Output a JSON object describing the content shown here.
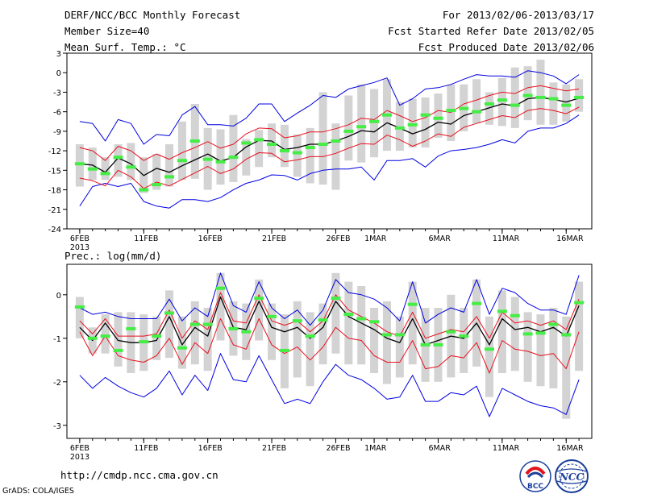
{
  "header": {
    "title": "DERF/NCC/BCC Monthly Forecast",
    "member_size": "Member Size=40",
    "variable": "Mean Surf. Temp.: °C",
    "period": "For 2013/02/06-2013/03/17",
    "fcst_started": "Fcst Started Refer Date 2013/02/05",
    "fcst_produced": "Fcst Produced Date 2013/02/06"
  },
  "footer": {
    "url": "http://cmdp.ncc.cma.gov.cn",
    "grads": "GrADS: COLA/IGES",
    "logo_bcc": "BCC",
    "logo_ncc": "NCC"
  },
  "colors": {
    "mean": "#000000",
    "spread": "#e8101e",
    "extreme": "#0000e0",
    "range_box": "#d3d3d3",
    "observed": "#44ee44"
  },
  "chart_data": [
    {
      "type": "line",
      "title": "Mean Surf. Temp.: °C",
      "x_tick_labels": [
        "6FEB",
        "11FEB",
        "16FEB",
        "21FEB",
        "26FEB",
        "1MAR",
        "6MAR",
        "11MAR",
        "16MAR"
      ],
      "x_tick_days": [
        1,
        6,
        11,
        16,
        21,
        24,
        29,
        34,
        39
      ],
      "x_year_label": "2013",
      "y_ticks": [
        3,
        0,
        -3,
        -6,
        -9,
        -12,
        -15,
        -18,
        -21,
        -24
      ],
      "y_tick_labels": [
        "3",
        "0",
        "-3",
        "-6",
        "-9",
        "-12",
        "-15",
        "-18",
        "-21",
        "-24"
      ],
      "ylim": [
        -24,
        3
      ],
      "x_days": [
        1,
        2,
        3,
        4,
        5,
        6,
        7,
        8,
        9,
        10,
        11,
        12,
        13,
        14,
        15,
        16,
        17,
        18,
        19,
        20,
        21,
        22,
        23,
        24,
        25,
        26,
        27,
        28,
        29,
        30,
        31,
        32,
        33,
        34,
        35,
        36,
        37,
        38,
        39,
        40
      ],
      "series": [
        {
          "name": "ensemble_mean",
          "values": [
            -14.0,
            -14.2,
            -15.3,
            -13.1,
            -14.0,
            -15.8,
            -14.7,
            -15.3,
            -14.3,
            -13.4,
            -12.5,
            -13.6,
            -13.0,
            -11.4,
            -10.4,
            -10.5,
            -11.8,
            -11.5,
            -11.0,
            -11.0,
            -10.5,
            -9.8,
            -8.9,
            -9.1,
            -7.7,
            -8.5,
            -9.4,
            -8.7,
            -7.6,
            -7.9,
            -6.6,
            -6.0,
            -5.4,
            -4.8,
            -5.1,
            -4.0,
            -3.8,
            -4.1,
            -4.5,
            -3.9
          ]
        },
        {
          "name": "mean_plus_sd",
          "values": [
            -11.5,
            -12.0,
            -13.5,
            -11.3,
            -12.0,
            -13.5,
            -12.5,
            -13.3,
            -12.3,
            -11.5,
            -10.6,
            -11.6,
            -11.0,
            -9.4,
            -8.5,
            -8.6,
            -10.0,
            -9.7,
            -9.1,
            -9.1,
            -8.6,
            -8.0,
            -7.0,
            -7.2,
            -5.8,
            -6.6,
            -7.5,
            -6.9,
            -5.8,
            -6.1,
            -4.8,
            -4.2,
            -3.5,
            -3.0,
            -3.2,
            -2.3,
            -2.0,
            -2.4,
            -2.8,
            -2.5
          ]
        },
        {
          "name": "mean_minus_sd",
          "values": [
            -16.2,
            -16.6,
            -17.4,
            -15.0,
            -16.0,
            -17.8,
            -16.8,
            -17.4,
            -16.4,
            -15.4,
            -14.4,
            -15.5,
            -14.8,
            -13.3,
            -12.3,
            -12.4,
            -13.7,
            -13.4,
            -12.9,
            -12.9,
            -12.4,
            -11.6,
            -10.9,
            -11.0,
            -9.6,
            -10.3,
            -11.3,
            -10.5,
            -9.4,
            -9.8,
            -8.4,
            -7.8,
            -7.2,
            -6.6,
            -6.9,
            -5.8,
            -5.5,
            -5.8,
            -6.3,
            -5.3
          ]
        },
        {
          "name": "ensemble_max",
          "values": [
            -7.5,
            -7.8,
            -10.5,
            -7.2,
            -7.8,
            -11.0,
            -9.5,
            -9.7,
            -6.5,
            -5.2,
            -8.0,
            -8.0,
            -8.2,
            -7.0,
            -4.8,
            -4.8,
            -7.5,
            -6.2,
            -5.0,
            -3.5,
            -3.8,
            -2.5,
            -2.0,
            -1.5,
            -0.8,
            -5.0,
            -4.0,
            -2.5,
            -2.3,
            -1.8,
            -1.0,
            -0.3,
            -0.5,
            -0.5,
            -0.7,
            0.3,
            0.0,
            -0.5,
            -1.7,
            -0.3
          ]
        },
        {
          "name": "ensemble_min",
          "values": [
            -20.5,
            -17.5,
            -17.0,
            -17.5,
            -17.0,
            -19.8,
            -20.5,
            -20.8,
            -19.5,
            -19.5,
            -19.8,
            -19.2,
            -18.0,
            -17.0,
            -16.5,
            -15.7,
            -15.8,
            -16.5,
            -15.5,
            -15.0,
            -14.8,
            -14.8,
            -14.5,
            -16.5,
            -13.5,
            -13.5,
            -13.2,
            -14.5,
            -12.8,
            -12.0,
            -11.8,
            -11.5,
            -11.0,
            -10.3,
            -10.8,
            -9.0,
            -8.5,
            -8.5,
            -7.8,
            -6.5
          ]
        },
        {
          "name": "member_range_high",
          "values": [
            -11.0,
            -11.5,
            -13.0,
            -11.0,
            -10.8,
            -13.0,
            -12.5,
            -11.0,
            -7.5,
            -4.8,
            -8.5,
            -8.7,
            -6.5,
            -10.2,
            -8.8,
            -7.8,
            -8.0,
            -9.5,
            -8.5,
            -3.0,
            -7.8,
            -3.5,
            -1.8,
            -2.5,
            -1.0,
            -4.5,
            -4.0,
            -3.8,
            -3.2,
            -1.8,
            -1.8,
            -1.0,
            -3.0,
            -0.8,
            0.8,
            1.0,
            2.0,
            -1.5,
            -1.8,
            -1.0
          ]
        },
        {
          "name": "member_range_low",
          "values": [
            -17.5,
            -16.5,
            -16.5,
            -16.0,
            -16.5,
            -18.5,
            -18.0,
            -17.5,
            -16.5,
            -16.3,
            -18.0,
            -17.2,
            -16.8,
            -15.8,
            -14.5,
            -13.0,
            -14.5,
            -16.0,
            -17.0,
            -17.2,
            -18.0,
            -13.5,
            -13.8,
            -13.0,
            -12.0,
            -12.0,
            -11.5,
            -11.5,
            -10.0,
            -10.5,
            -9.0,
            -7.8,
            -8.0,
            -8.2,
            -8.5,
            -7.3,
            -8.0,
            -8.0,
            -7.5,
            -6.0
          ]
        },
        {
          "name": "observed",
          "values": [
            -14.0,
            -14.8,
            -15.5,
            -13.0,
            -14.5,
            -18.0,
            -17.2,
            -16.0,
            -13.5,
            -10.5,
            -13.3,
            -13.7,
            -13.0,
            -10.8,
            -10.3,
            -11.0,
            -12.0,
            -12.3,
            -11.5,
            -11.0,
            -10.5,
            -9.0,
            -8.3,
            -7.5,
            -6.5,
            -8.5,
            -8.0,
            -6.5,
            -7.0,
            -5.8,
            -5.5,
            -6.0,
            -4.8,
            -4.2,
            -5.0,
            -3.5,
            -3.8,
            -4.0,
            -5.0,
            -3.8
          ]
        }
      ]
    },
    {
      "type": "line",
      "title": "Prec.: log(mm/d)",
      "x_tick_labels": [
        "6FEB",
        "11FEB",
        "16FEB",
        "21FEB",
        "26FEB",
        "1MAR",
        "6MAR",
        "11MAR",
        "16MAR"
      ],
      "x_tick_days": [
        1,
        6,
        11,
        16,
        21,
        24,
        29,
        34,
        39
      ],
      "x_year_label": "2013",
      "y_ticks": [
        0,
        -1,
        -2,
        -3
      ],
      "y_tick_labels": [
        "0",
        "-1",
        "-2",
        "-3"
      ],
      "ylim": [
        -3.3,
        0.7
      ],
      "x_days": [
        1,
        2,
        3,
        4,
        5,
        6,
        7,
        8,
        9,
        10,
        11,
        12,
        13,
        14,
        15,
        16,
        17,
        18,
        19,
        20,
        21,
        22,
        23,
        24,
        25,
        26,
        27,
        28,
        29,
        30,
        31,
        32,
        33,
        34,
        35,
        36,
        37,
        38,
        39,
        40
      ],
      "series": [
        {
          "name": "ensemble_mean",
          "values": [
            -0.75,
            -1.05,
            -0.65,
            -1.05,
            -1.1,
            -1.1,
            -1.05,
            -0.5,
            -1.15,
            -0.75,
            -0.95,
            -0.05,
            -0.75,
            -0.8,
            -0.15,
            -0.75,
            -0.85,
            -0.75,
            -1.0,
            -0.75,
            -0.15,
            -0.5,
            -0.65,
            -0.8,
            -1.0,
            -1.1,
            -0.55,
            -1.15,
            -1.05,
            -0.95,
            -1.0,
            -0.65,
            -1.15,
            -0.55,
            -0.8,
            -0.75,
            -0.85,
            -0.75,
            -0.95,
            -0.25
          ]
        },
        {
          "name": "mean_plus_sd",
          "values": [
            -0.6,
            -0.9,
            -0.55,
            -0.95,
            -0.95,
            -0.95,
            -0.9,
            -0.35,
            -1.0,
            -0.6,
            -0.8,
            0.05,
            -0.6,
            -0.65,
            -0.0,
            -0.6,
            -0.7,
            -0.6,
            -0.85,
            -0.6,
            -0.0,
            -0.35,
            -0.5,
            -0.65,
            -0.85,
            -0.95,
            -0.4,
            -1.0,
            -0.9,
            -0.8,
            -0.85,
            -0.5,
            -1.0,
            -0.4,
            -0.65,
            -0.6,
            -0.7,
            -0.6,
            -0.8,
            -0.1
          ]
        },
        {
          "name": "mean_minus_sd",
          "values": [
            -0.85,
            -1.4,
            -0.95,
            -1.4,
            -1.5,
            -1.55,
            -1.4,
            -1.0,
            -1.6,
            -1.1,
            -1.35,
            -0.55,
            -1.15,
            -1.25,
            -0.55,
            -1.15,
            -1.35,
            -1.2,
            -1.5,
            -1.2,
            -0.75,
            -1.0,
            -1.05,
            -1.4,
            -1.55,
            -1.55,
            -1.05,
            -1.7,
            -1.65,
            -1.4,
            -1.45,
            -1.1,
            -1.8,
            -1.05,
            -1.25,
            -1.3,
            -1.4,
            -1.35,
            -1.7,
            -0.85
          ]
        },
        {
          "name": "ensemble_max",
          "values": [
            -0.3,
            -0.45,
            -0.4,
            -0.5,
            -0.55,
            -0.55,
            -0.55,
            -0.1,
            -0.6,
            -0.3,
            -0.5,
            0.5,
            -0.25,
            -0.4,
            0.3,
            -0.3,
            -0.55,
            -0.35,
            -0.7,
            -0.35,
            0.35,
            0.05,
            0.0,
            -0.1,
            -0.3,
            -0.6,
            0.3,
            -0.65,
            -0.45,
            -0.3,
            -0.4,
            0.35,
            -0.45,
            0.15,
            0.05,
            -0.2,
            -0.35,
            -0.35,
            -0.45,
            0.45
          ]
        },
        {
          "name": "ensemble_min",
          "values": [
            -1.85,
            -2.15,
            -1.9,
            -2.1,
            -2.25,
            -2.35,
            -2.15,
            -1.75,
            -2.3,
            -1.85,
            -2.2,
            -1.35,
            -1.95,
            -2.0,
            -1.4,
            -1.95,
            -2.5,
            -2.4,
            -2.5,
            -2.0,
            -1.6,
            -1.85,
            -1.95,
            -2.15,
            -2.4,
            -2.35,
            -1.85,
            -2.45,
            -2.45,
            -2.25,
            -2.3,
            -2.1,
            -2.8,
            -2.15,
            -2.3,
            -2.45,
            -2.55,
            -2.6,
            -2.75,
            -1.95
          ]
        },
        {
          "name": "member_range_high",
          "values": [
            -0.05,
            -0.75,
            -0.45,
            -0.4,
            -0.4,
            -0.45,
            -0.5,
            0.1,
            -0.5,
            -0.15,
            -0.3,
            0.5,
            -0.15,
            -0.2,
            0.35,
            -0.2,
            -0.45,
            -0.15,
            -0.4,
            -0.2,
            0.5,
            0.3,
            0.2,
            -0.3,
            -0.15,
            -0.5,
            0.3,
            -0.3,
            -0.3,
            0.0,
            -0.3,
            0.35,
            -0.5,
            0.1,
            -0.05,
            -0.4,
            -0.45,
            -0.3,
            -0.5,
            0.3
          ]
        },
        {
          "name": "member_range_low",
          "values": [
            -1.0,
            -1.35,
            -1.35,
            -1.65,
            -1.8,
            -1.75,
            -1.5,
            -1.45,
            -1.7,
            -1.6,
            -1.75,
            -1.05,
            -1.4,
            -1.5,
            -1.05,
            -1.5,
            -2.15,
            -1.9,
            -2.1,
            -1.6,
            -1.35,
            -1.6,
            -1.6,
            -1.8,
            -2.05,
            -1.9,
            -1.6,
            -2.0,
            -2.0,
            -1.9,
            -1.8,
            -1.65,
            -2.35,
            -1.8,
            -1.75,
            -2.0,
            -2.1,
            -2.15,
            -2.85,
            -1.75
          ]
        },
        {
          "name": "observed",
          "values": [
            -0.28,
            -1.0,
            -0.95,
            -1.28,
            -0.78,
            -1.08,
            -0.95,
            -0.42,
            -1.22,
            -0.68,
            -0.68,
            0.15,
            -0.78,
            -0.85,
            -0.08,
            -0.5,
            -1.28,
            -0.6,
            -0.95,
            -0.58,
            -0.08,
            -0.45,
            -0.55,
            -0.62,
            -0.92,
            -0.92,
            -0.22,
            -1.15,
            -1.15,
            -0.85,
            -0.95,
            -0.2,
            -1.25,
            -0.38,
            -0.48,
            -0.9,
            -0.88,
            -0.68,
            -0.92,
            -0.18
          ]
        }
      ]
    }
  ]
}
